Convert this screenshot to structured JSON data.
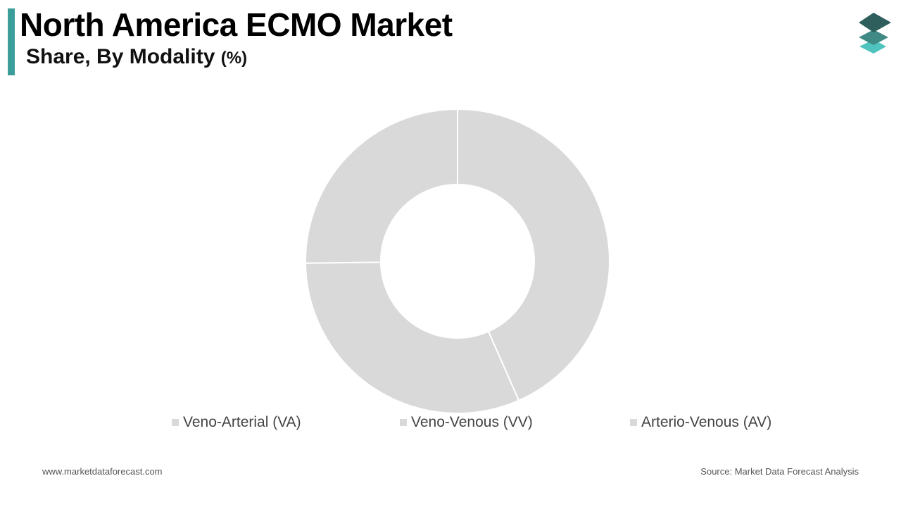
{
  "header": {
    "title": "North America ECMO Market",
    "subtitle": "Share, By Modality",
    "subtitle_unit": "(%)"
  },
  "chart_data": {
    "type": "pie",
    "style": "donut",
    "categories": [
      "Veno-Arterial (VA)",
      "Veno-Venous (VV)",
      "Arterio-Venous (AV)"
    ],
    "values": [
      43.4,
      31.4,
      25.2
    ],
    "colors": [
      "#d9d9d9",
      "#d9d9d9",
      "#d9d9d9"
    ],
    "separator_color": "#ffffff",
    "legend_position": "bottom"
  },
  "footer": {
    "website": "www.marketdataforecast.com",
    "source": "Source: Market Data Forecast Analysis"
  },
  "colors": {
    "accent": "#3b9e9b",
    "logo_dark": "#2e5f5c",
    "logo_mid": "#3f8a85",
    "logo_light": "#4fc3bd"
  },
  "icons": {
    "logo": "stacked-layers-logo"
  }
}
